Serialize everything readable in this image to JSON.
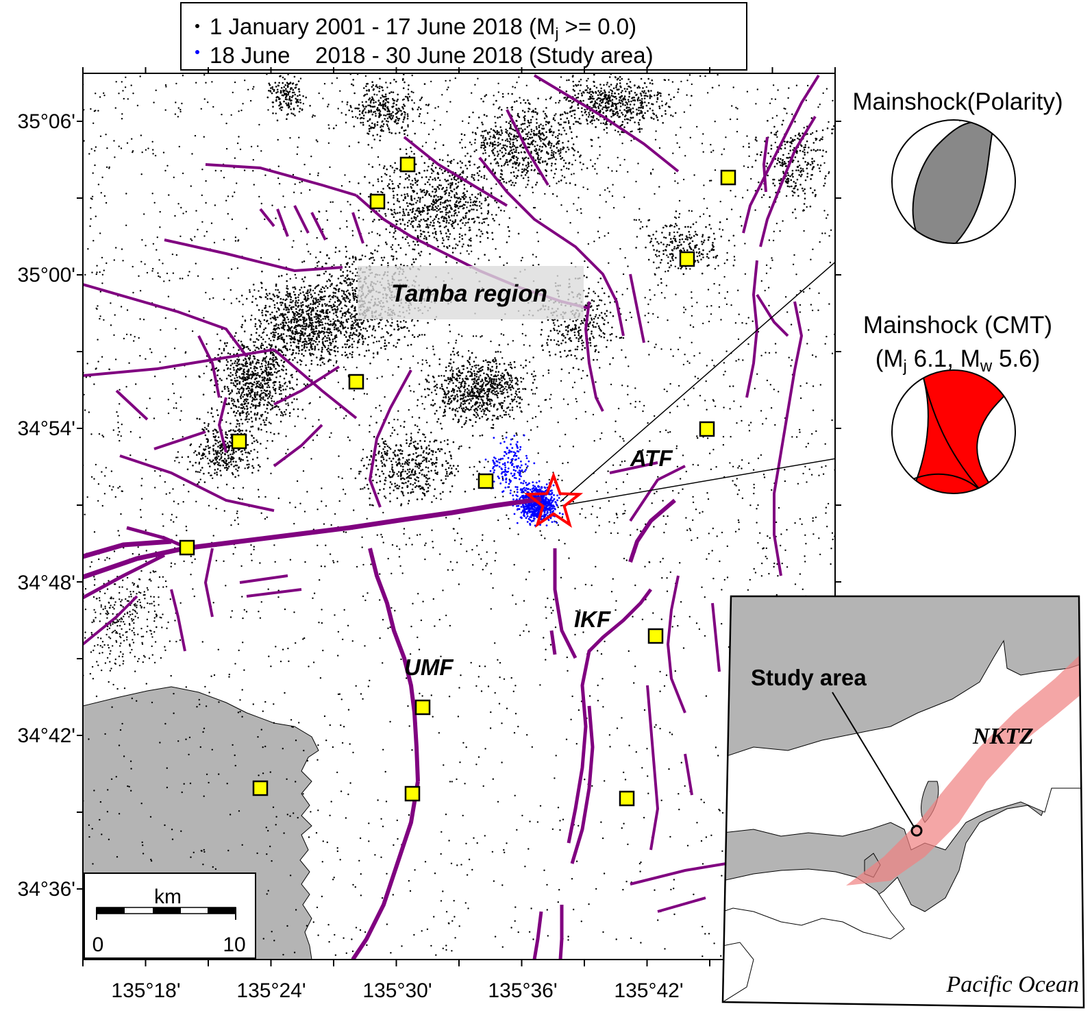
{
  "legend": {
    "entry1": "1 January 2001 - 17 June 2018 (M",
    "entry1_sub": "j",
    "entry1_tail": " >= 0.0)",
    "entry1_color": "#000000",
    "entry2": "18 June    2018 - 30 June 2018 (Study area)",
    "entry2_color": "#0000ff"
  },
  "map": {
    "lat_labels": [
      "35°06'",
      "35°00'",
      "34°54'",
      "34°48'",
      "34°42'",
      "34°36'"
    ],
    "lon_labels": [
      "135°18'",
      "135°24'",
      "135°30'",
      "135°36'",
      "135°42'"
    ],
    "region_label": "Tamba region",
    "fault_labels": {
      "atf": "ATF",
      "ikf": "IKF",
      "umf": "UMF"
    },
    "fault_color": "#800080",
    "station_color": "#ffff00",
    "sea_color": "#b4b4b4",
    "epicenter_color": "#ff0000"
  },
  "scale_bar": {
    "unit": "km",
    "min": "0",
    "max": "10"
  },
  "mechanisms": {
    "polarity_title": "Mainshock(Polarity)",
    "cmt_title": "Mainshock (CMT)",
    "cmt_mag": {
      "open": "(M",
      "mj_sub": "j",
      "mj": " 6.1, M",
      "mw_sub": "w",
      "mw": " 5.6)"
    },
    "polarity_color": "#888888",
    "cmt_color": "#ff0000"
  },
  "inset": {
    "study_label": "Study area",
    "zone_label": "NKTZ",
    "ocean_label": "Pacific Ocean",
    "zone_color": "#f08080"
  }
}
